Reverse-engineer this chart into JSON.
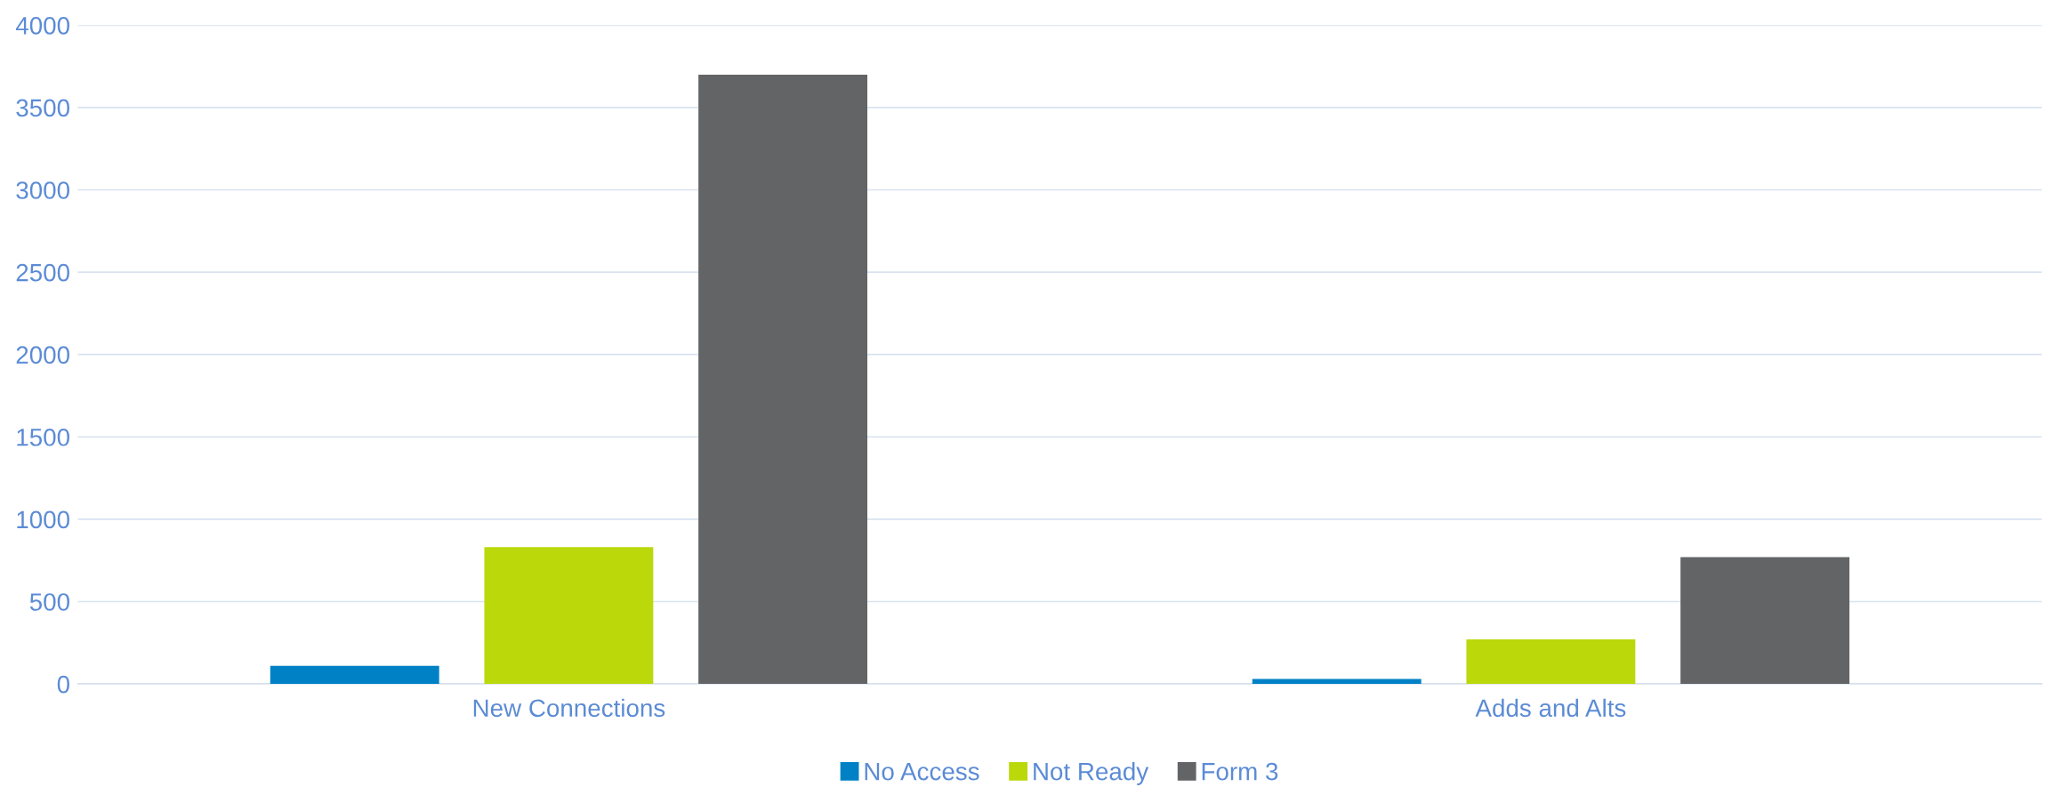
{
  "chart_data": {
    "type": "bar",
    "categories": [
      "New Connections",
      "Adds and Alts"
    ],
    "series": [
      {
        "name": "No Access",
        "color": "#0081c6",
        "values": [
          110,
          30
        ]
      },
      {
        "name": "Not Ready",
        "color": "#bbd80a",
        "values": [
          830,
          270
        ]
      },
      {
        "name": "Form 3",
        "color": "#636466",
        "values": [
          3700,
          770
        ]
      }
    ],
    "ylim": [
      0,
      4000
    ],
    "yticks": [
      0,
      500,
      1000,
      1500,
      2000,
      2500,
      3000,
      3500,
      4000
    ],
    "grid": "y",
    "legend": "bottom"
  }
}
